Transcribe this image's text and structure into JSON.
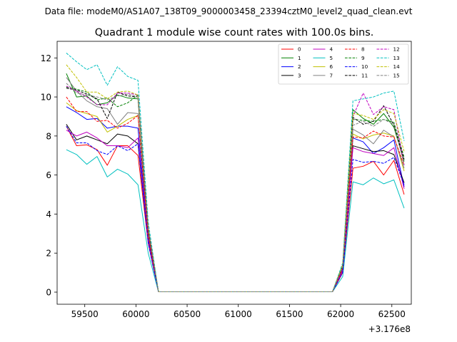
{
  "suptitle": "Data file: modeM0/AS1A07_138T09_9000003458_23394cztM0_level2_quad_clean.evt",
  "chart_data": {
    "type": "line",
    "title": "Quadrant 1 module wise count rates with 100.0s bins.",
    "xlabel": "",
    "ylabel": "",
    "x_offset_label": "+3.176e8",
    "xlim": [
      59230,
      62690
    ],
    "ylim": [
      -0.62,
      12.85
    ],
    "xticks": [
      59500,
      60000,
      60500,
      61000,
      61500,
      62000,
      62500
    ],
    "xtick_labels": [
      "59500",
      "60000",
      "60500",
      "61000",
      "61500",
      "62000",
      "62500"
    ],
    "yticks": [
      0,
      2,
      4,
      6,
      8,
      10,
      12
    ],
    "ytick_labels": [
      "0",
      "2",
      "4",
      "6",
      "8",
      "10",
      "12"
    ],
    "grid": false,
    "legend_position": "top-right",
    "legend_columns": 4,
    "x": [
      59320,
      59420,
      59520,
      59620,
      59720,
      59820,
      59920,
      60020,
      60120,
      60220,
      60320,
      60420,
      60520,
      60620,
      60720,
      60820,
      60920,
      61020,
      61120,
      61220,
      61320,
      61420,
      61520,
      61620,
      61720,
      61820,
      61920,
      62020,
      62120,
      62220,
      62320,
      62420,
      62520,
      62620
    ],
    "series": [
      {
        "name": "0",
        "color": "#ff0000",
        "dash": "solid",
        "values": [
          8.5,
          7.5,
          7.55,
          7.3,
          6.5,
          7.5,
          7.5,
          7.0,
          2.5,
          0.02,
          0.02,
          0.02,
          0.02,
          0.02,
          0.02,
          0.02,
          0.02,
          0.02,
          0.02,
          0.02,
          0.02,
          0.02,
          0.02,
          0.02,
          0.02,
          0.02,
          0.02,
          1.0,
          6.35,
          6.45,
          6.7,
          6.0,
          6.75,
          5.0
        ]
      },
      {
        "name": "1",
        "color": "#008000",
        "dash": "solid",
        "values": [
          11.2,
          10.0,
          10.05,
          9.6,
          9.7,
          10.1,
          9.95,
          9.9,
          3.2,
          0.02,
          0.02,
          0.02,
          0.02,
          0.02,
          0.02,
          0.02,
          0.02,
          0.02,
          0.02,
          0.02,
          0.02,
          0.02,
          0.02,
          0.02,
          0.02,
          0.02,
          0.02,
          1.4,
          9.35,
          8.9,
          8.6,
          9.15,
          8.45,
          6.7
        ]
      },
      {
        "name": "2",
        "color": "#0000ff",
        "dash": "solid",
        "values": [
          9.5,
          9.2,
          8.85,
          8.9,
          8.4,
          8.5,
          8.5,
          8.4,
          2.8,
          0.02,
          0.02,
          0.02,
          0.02,
          0.02,
          0.02,
          0.02,
          0.02,
          0.02,
          0.02,
          0.02,
          0.02,
          0.02,
          0.02,
          0.02,
          0.02,
          0.02,
          0.02,
          1.2,
          7.9,
          7.7,
          7.1,
          7.4,
          7.8,
          5.4
        ]
      },
      {
        "name": "3",
        "color": "#000000",
        "dash": "solid",
        "values": [
          8.6,
          7.8,
          8.0,
          7.8,
          7.6,
          8.1,
          8.0,
          7.6,
          2.6,
          0.02,
          0.02,
          0.02,
          0.02,
          0.02,
          0.02,
          0.02,
          0.02,
          0.02,
          0.02,
          0.02,
          0.02,
          0.02,
          0.02,
          0.02,
          0.02,
          0.02,
          0.02,
          1.1,
          7.5,
          7.35,
          7.2,
          7.25,
          7.05,
          5.6
        ]
      },
      {
        "name": "4",
        "color": "#c000c0",
        "dash": "solid",
        "values": [
          8.3,
          8.0,
          8.2,
          7.9,
          7.5,
          7.5,
          7.4,
          7.9,
          2.6,
          0.02,
          0.02,
          0.02,
          0.02,
          0.02,
          0.02,
          0.02,
          0.02,
          0.02,
          0.02,
          0.02,
          0.02,
          0.02,
          0.02,
          0.02,
          0.02,
          0.02,
          0.02,
          1.1,
          7.4,
          7.2,
          7.1,
          7.0,
          7.4,
          5.3
        ]
      },
      {
        "name": "5",
        "color": "#00c0c0",
        "dash": "solid",
        "values": [
          7.3,
          7.05,
          6.55,
          6.95,
          5.9,
          6.3,
          6.05,
          5.5,
          2.0,
          0.02,
          0.02,
          0.02,
          0.02,
          0.02,
          0.02,
          0.02,
          0.02,
          0.02,
          0.02,
          0.02,
          0.02,
          0.02,
          0.02,
          0.02,
          0.02,
          0.02,
          0.02,
          0.8,
          5.65,
          5.5,
          5.85,
          5.55,
          5.75,
          4.3
        ]
      },
      {
        "name": "6",
        "color": "#c0c000",
        "dash": "solid",
        "values": [
          9.7,
          9.3,
          9.15,
          9.0,
          8.2,
          8.5,
          8.85,
          9.05,
          3.0,
          0.02,
          0.02,
          0.02,
          0.02,
          0.02,
          0.02,
          0.02,
          0.02,
          0.02,
          0.02,
          0.02,
          0.02,
          0.02,
          0.02,
          0.02,
          0.02,
          0.02,
          0.02,
          1.3,
          8.1,
          7.85,
          8.05,
          8.15,
          8.0,
          6.2
        ]
      },
      {
        "name": "7",
        "color": "#808080",
        "dash": "solid",
        "values": [
          11.0,
          10.3,
          9.8,
          9.5,
          9.4,
          8.6,
          9.2,
          9.15,
          3.0,
          0.02,
          0.02,
          0.02,
          0.02,
          0.02,
          0.02,
          0.02,
          0.02,
          0.02,
          0.02,
          0.02,
          0.02,
          0.02,
          0.02,
          0.02,
          0.02,
          0.02,
          0.02,
          1.3,
          8.35,
          8.05,
          7.6,
          8.3,
          7.95,
          6.35
        ]
      },
      {
        "name": "8",
        "color": "#ff0000",
        "dash": "dashed",
        "values": [
          10.0,
          9.25,
          9.25,
          8.75,
          8.8,
          8.4,
          8.65,
          9.05,
          2.9,
          0.02,
          0.02,
          0.02,
          0.02,
          0.02,
          0.02,
          0.02,
          0.02,
          0.02,
          0.02,
          0.02,
          0.02,
          0.02,
          0.02,
          0.02,
          0.02,
          0.02,
          0.02,
          1.2,
          7.95,
          7.9,
          8.25,
          8.0,
          7.95,
          6.5
        ]
      },
      {
        "name": "9",
        "color": "#008000",
        "dash": "dashed",
        "values": [
          10.5,
          10.4,
          10.25,
          9.85,
          9.95,
          9.5,
          9.7,
          10.1,
          3.3,
          0.02,
          0.02,
          0.02,
          0.02,
          0.02,
          0.02,
          0.02,
          0.02,
          0.02,
          0.02,
          0.02,
          0.02,
          0.02,
          0.02,
          0.02,
          0.02,
          0.02,
          0.02,
          1.4,
          8.85,
          8.8,
          8.75,
          8.85,
          8.7,
          6.9
        ]
      },
      {
        "name": "10",
        "color": "#0000ff",
        "dash": "dashed",
        "values": [
          8.5,
          7.65,
          7.65,
          7.25,
          7.05,
          7.5,
          7.25,
          7.6,
          2.5,
          0.02,
          0.02,
          0.02,
          0.02,
          0.02,
          0.02,
          0.02,
          0.02,
          0.02,
          0.02,
          0.02,
          0.02,
          0.02,
          0.02,
          0.02,
          0.02,
          0.02,
          0.02,
          1.0,
          6.8,
          6.65,
          6.7,
          6.6,
          6.9,
          5.5
        ]
      },
      {
        "name": "11",
        "color": "#000000",
        "dash": "dashed",
        "values": [
          10.45,
          10.35,
          10.15,
          9.9,
          8.9,
          10.25,
          10.05,
          10.0,
          3.2,
          0.02,
          0.02,
          0.02,
          0.02,
          0.02,
          0.02,
          0.02,
          0.02,
          0.02,
          0.02,
          0.02,
          0.02,
          0.02,
          0.02,
          0.02,
          0.02,
          0.02,
          0.02,
          1.3,
          8.95,
          8.6,
          8.75,
          9.55,
          8.55,
          6.8
        ]
      },
      {
        "name": "12",
        "color": "#c000c0",
        "dash": "dashed",
        "values": [
          10.55,
          10.3,
          10.0,
          9.6,
          9.6,
          10.2,
          10.2,
          10.1,
          3.3,
          0.02,
          0.02,
          0.02,
          0.02,
          0.02,
          0.02,
          0.02,
          0.02,
          0.02,
          0.02,
          0.02,
          0.02,
          0.02,
          0.02,
          0.02,
          0.02,
          0.02,
          0.02,
          1.4,
          9.0,
          10.2,
          9.1,
          9.5,
          9.35,
          6.5
        ]
      },
      {
        "name": "13",
        "color": "#00c0c0",
        "dash": "dashed",
        "values": [
          12.25,
          11.8,
          11.4,
          11.65,
          10.6,
          11.55,
          11.05,
          10.85,
          3.6,
          0.02,
          0.02,
          0.02,
          0.02,
          0.02,
          0.02,
          0.02,
          0.02,
          0.02,
          0.02,
          0.02,
          0.02,
          0.02,
          0.02,
          0.02,
          0.02,
          0.02,
          0.02,
          1.5,
          9.8,
          9.9,
          10.0,
          10.2,
          10.3,
          7.75
        ]
      },
      {
        "name": "14",
        "color": "#c0c000",
        "dash": "dashed",
        "values": [
          11.65,
          11.0,
          10.25,
          10.25,
          9.9,
          10.25,
          10.3,
          10.1,
          3.3,
          0.02,
          0.02,
          0.02,
          0.02,
          0.02,
          0.02,
          0.02,
          0.02,
          0.02,
          0.02,
          0.02,
          0.02,
          0.02,
          0.02,
          0.02,
          0.02,
          0.02,
          0.02,
          1.4,
          9.15,
          9.05,
          8.85,
          9.35,
          9.15,
          7.2
        ]
      },
      {
        "name": "15",
        "color": "#808080",
        "dash": "dashed",
        "values": [
          10.7,
          10.2,
          10.1,
          10.0,
          9.85,
          10.05,
          10.15,
          10.0,
          3.3,
          0.02,
          0.02,
          0.02,
          0.02,
          0.02,
          0.02,
          0.02,
          0.02,
          0.02,
          0.02,
          0.02,
          0.02,
          0.02,
          0.02,
          0.02,
          0.02,
          0.02,
          0.02,
          1.3,
          8.55,
          8.75,
          8.5,
          8.85,
          8.6,
          6.55
        ]
      }
    ]
  }
}
